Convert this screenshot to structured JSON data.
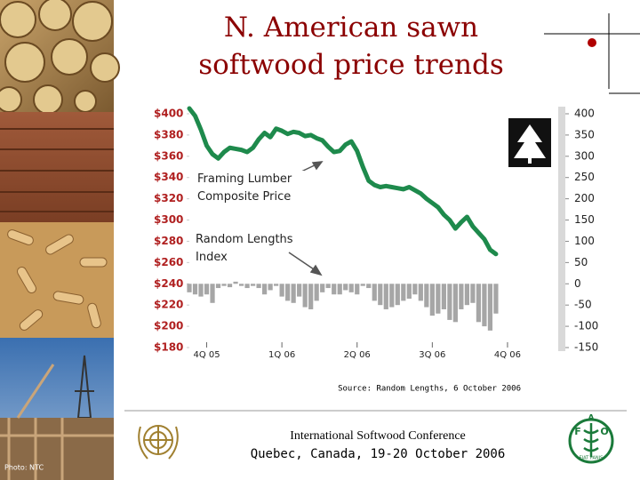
{
  "title": "N. American sawn softwood price trends",
  "chart_data": {
    "type": "line",
    "x": [
      0,
      1,
      2,
      3,
      4,
      5,
      6,
      7,
      8,
      9,
      10,
      11,
      12,
      13,
      14,
      15,
      16,
      17,
      18,
      19,
      20,
      21,
      22,
      23,
      24,
      25,
      26,
      27,
      28,
      29,
      30,
      31,
      32,
      33,
      34,
      35,
      36,
      37,
      38,
      39,
      40,
      41,
      42,
      43,
      44,
      45,
      46,
      47,
      48,
      49,
      50,
      51,
      52,
      53
    ],
    "xlim": [
      0,
      61
    ],
    "xticks": [
      {
        "value": 3,
        "label": "4Q 05"
      },
      {
        "value": 16,
        "label": "1Q 06"
      },
      {
        "value": 29,
        "label": "2Q 06"
      },
      {
        "value": 42,
        "label": "3Q 06"
      },
      {
        "value": 55,
        "label": "4Q 06"
      }
    ],
    "ylim": [
      180,
      400
    ],
    "yticks": [
      {
        "value": 180,
        "label": "$180"
      },
      {
        "value": 200,
        "label": "$200"
      },
      {
        "value": 220,
        "label": "$220"
      },
      {
        "value": 240,
        "label": "$240"
      },
      {
        "value": 260,
        "label": "$260"
      },
      {
        "value": 280,
        "label": "$280"
      },
      {
        "value": 300,
        "label": "$300"
      },
      {
        "value": 320,
        "label": "$320"
      },
      {
        "value": 340,
        "label": "$340"
      },
      {
        "value": 360,
        "label": "$360"
      },
      {
        "value": 380,
        "label": "$380"
      },
      {
        "value": 400,
        "label": "$400"
      }
    ],
    "y2lim": [
      -150,
      400
    ],
    "y2ticks": [
      -150,
      -100,
      -50,
      0,
      50,
      100,
      150,
      200,
      250,
      300,
      350,
      400
    ],
    "series": [
      {
        "name": "Random Lengths Index",
        "type": "bar",
        "axis": "y2",
        "color": "#a6a6a6",
        "values": [
          -20,
          -25,
          -30,
          -25,
          -45,
          -10,
          -5,
          -8,
          5,
          -5,
          -10,
          -5,
          -10,
          -25,
          -15,
          -5,
          -30,
          -40,
          -45,
          -30,
          -55,
          -60,
          -40,
          -20,
          -10,
          -25,
          -25,
          -15,
          -20,
          -25,
          -5,
          -10,
          -40,
          -50,
          -60,
          -55,
          -50,
          -40,
          -35,
          -25,
          -40,
          -55,
          -75,
          -70,
          -60,
          -85,
          -90,
          -60,
          -50,
          -45,
          -90,
          -100,
          -110,
          -70
        ]
      },
      {
        "name": "Framing Lumber Composite Price",
        "type": "line",
        "color": "#1e8a4c",
        "values": [
          405,
          398,
          385,
          370,
          362,
          358,
          364,
          368,
          367,
          366,
          364,
          368,
          376,
          382,
          378,
          386,
          384,
          381,
          383,
          382,
          379,
          380,
          377,
          375,
          369,
          364,
          365,
          371,
          374,
          365,
          350,
          337,
          333,
          331,
          332,
          331,
          330,
          329,
          331,
          328,
          325,
          320,
          316,
          312,
          305,
          300,
          292,
          298,
          303,
          294,
          288,
          282,
          272,
          268
        ]
      }
    ],
    "source": "Source: Random Lengths, 6 October 2006"
  },
  "footer": {
    "conference": "International Softwood Conference",
    "place": "Quebec, Canada, 19-20 October 2006"
  },
  "photo_credit": "Photo: NTC",
  "fao_logo": {
    "letters": [
      "F",
      "A",
      "O"
    ],
    "motto": "FIAT PANIS"
  }
}
